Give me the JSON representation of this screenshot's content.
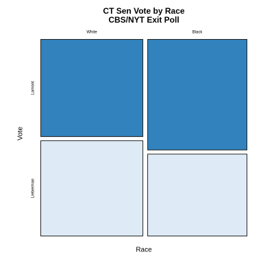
{
  "chart_data": {
    "type": "mosaic",
    "title": "CT Sen Vote by Race",
    "subtitle": "CBS/NYT Exit Poll",
    "x_label": "Race",
    "y_label": "Vote",
    "categories": [
      "White",
      "Black"
    ],
    "series": [
      {
        "name": "Lamont",
        "color": "#3182bd",
        "values": [
          25.6,
          28.3
        ]
      },
      {
        "name": "Lieberman",
        "color": "#deebf7",
        "values": [
          25.1,
          21.0
        ]
      }
    ]
  }
}
